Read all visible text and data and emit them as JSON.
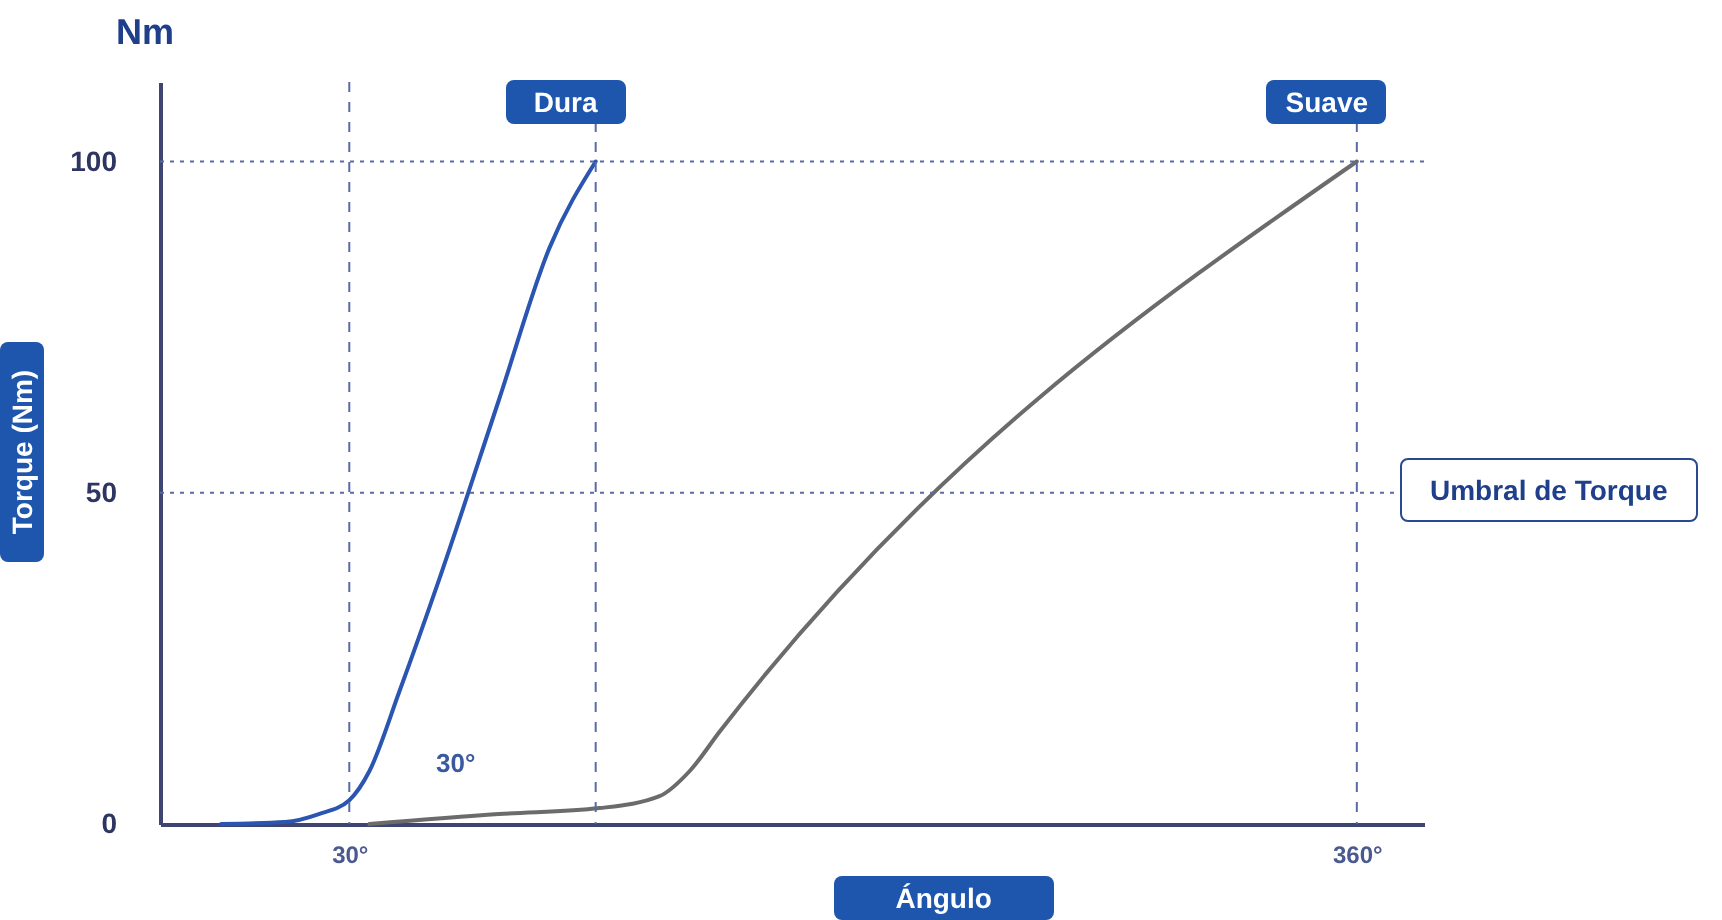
{
  "chart_data": {
    "type": "line",
    "xlabel": "Ángulo",
    "ylabel": "Torque (Nm)",
    "legend": false,
    "annotations": [
      "Nm",
      "30°"
    ],
    "xlim": [
      -32,
      382
    ],
    "ylim": [
      0,
      112
    ],
    "xticks": [
      {
        "value": 30,
        "label": "30°"
      },
      {
        "value": 360,
        "label": "360°"
      }
    ],
    "yticks": [
      0,
      50,
      100
    ],
    "grid": false,
    "line_style": "solid",
    "marker": "none",
    "ref_lines": [
      {
        "axis": "y",
        "value": 100,
        "label": null,
        "line_style": "dotted",
        "color": "#5a6aa8"
      },
      {
        "axis": "y",
        "value": 50,
        "label": "Umbral de Torque",
        "line_style": "dotted",
        "color": "#5a6aa8"
      },
      {
        "axis": "x",
        "value": 30,
        "label": null,
        "line_style": "dashed",
        "color": "#5a6aa8"
      },
      {
        "axis": "x",
        "value": 110.7,
        "label": null,
        "line_style": "dashed",
        "color": "#5a6aa8"
      },
      {
        "axis": "x",
        "value": 360,
        "label": null,
        "line_style": "dashed",
        "color": "#5a6aa8"
      }
    ],
    "series": [
      {
        "name": "Dura",
        "color": "#2a55b0",
        "x": [
          -12,
          9,
          20,
          30,
          36.6,
          46.4,
          59.5,
          79,
          95.6,
          110.7
        ],
        "values": [
          0,
          0.3,
          1.5,
          3.6,
          8,
          20,
          37,
          64,
          87,
          100
        ]
      },
      {
        "name": "Suave",
        "color": "#6b6b6b",
        "x": [
          36.6,
          79,
          112,
          131.6,
          141.5,
          151.4,
          360
        ],
        "values": [
          0,
          1.5,
          2.4,
          4.2,
          8,
          14,
          100
        ]
      }
    ]
  }
}
